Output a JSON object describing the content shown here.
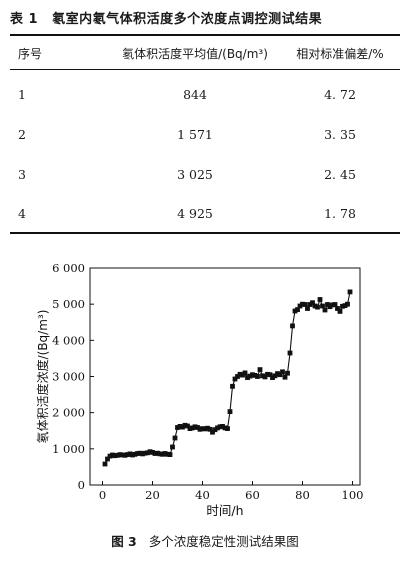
{
  "table": {
    "number": "表 1",
    "title": "氡室内氡气体积活度多个浓度点调控测试结果",
    "headers": [
      "序号",
      "氡体积活度平均值/(Bq/m³)",
      "相对标准偏差/%"
    ],
    "rows": [
      [
        "1",
        "844",
        "4. 72"
      ],
      [
        "2",
        "1 571",
        "3. 35"
      ],
      [
        "3",
        "3 025",
        "2. 45"
      ],
      [
        "4",
        "4 925",
        "1. 78"
      ]
    ]
  },
  "figure": {
    "number": "图 3",
    "title": "多个浓度稳定性测试结果图"
  },
  "chart_data": {
    "type": "line",
    "xlabel": "时间/h",
    "ylabel": "氡体积活度浓度/(Bq/m³)",
    "xlim": [
      -5,
      103
    ],
    "ylim": [
      0,
      6000
    ],
    "x_ticks": [
      0,
      20,
      40,
      60,
      80,
      100
    ],
    "y_ticks": [
      0,
      1000,
      2000,
      3000,
      4000,
      5000,
      6000
    ],
    "y_tick_labels": [
      "0",
      "1 000",
      "2 000",
      "3 000",
      "4 000",
      "5 000",
      "6 000"
    ],
    "marker": "square",
    "color": "#111111",
    "series": [
      {
        "x": [
          1,
          2,
          3,
          4,
          5,
          6,
          7,
          8,
          9,
          10,
          11,
          12,
          13,
          14,
          15,
          16,
          17,
          18,
          19,
          20,
          21,
          22,
          23,
          24,
          25,
          26,
          27,
          28,
          29,
          30,
          31,
          32,
          33,
          34,
          35,
          36,
          37,
          38,
          39,
          40,
          41,
          42,
          43,
          44,
          45,
          46,
          47,
          48,
          49,
          50,
          51,
          52,
          53,
          54,
          55,
          56,
          57,
          58,
          59,
          60,
          61,
          62,
          63,
          64,
          65,
          66,
          67,
          68,
          69,
          70,
          71,
          72,
          73,
          74,
          75,
          76,
          77,
          78,
          79,
          80,
          81,
          82,
          83,
          84,
          85,
          86,
          87,
          88,
          89,
          90,
          91,
          92,
          93,
          94,
          95,
          96,
          97,
          98,
          99
        ],
        "y": [
          580,
          720,
          800,
          830,
          810,
          820,
          840,
          830,
          820,
          840,
          860,
          830,
          850,
          870,
          880,
          860,
          880,
          890,
          920,
          900,
          870,
          880,
          860,
          850,
          870,
          850,
          840,
          1050,
          1300,
          1590,
          1620,
          1600,
          1650,
          1630,
          1560,
          1580,
          1610,
          1590,
          1540,
          1560,
          1550,
          1570,
          1540,
          1460,
          1530,
          1580,
          1610,
          1620,
          1580,
          1560,
          2030,
          2730,
          2930,
          3000,
          3060,
          3040,
          3100,
          2970,
          3010,
          3050,
          3030,
          3000,
          3190,
          3020,
          2990,
          3060,
          3050,
          2970,
          3020,
          3080,
          3050,
          3130,
          2980,
          3090,
          3650,
          4400,
          4810,
          4850,
          4950,
          5000,
          4990,
          4880,
          4990,
          5040,
          4950,
          4920,
          5130,
          4950,
          4840,
          4990,
          4930,
          4980,
          4990,
          4880,
          4800,
          4940,
          4960,
          5000,
          5340
        ]
      }
    ]
  }
}
